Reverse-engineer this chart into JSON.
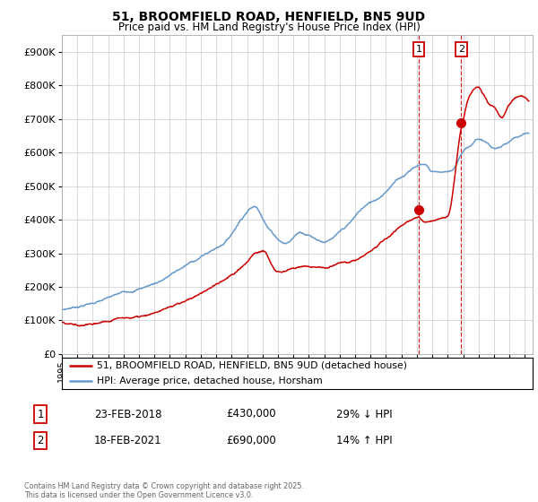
{
  "title1": "51, BROOMFIELD ROAD, HENFIELD, BN5 9UD",
  "title2": "Price paid vs. HM Land Registry's House Price Index (HPI)",
  "xlim_start": 1995.0,
  "xlim_end": 2025.5,
  "ylim": [
    0,
    950000
  ],
  "yticks": [
    0,
    100000,
    200000,
    300000,
    400000,
    500000,
    600000,
    700000,
    800000,
    900000
  ],
  "ytick_labels": [
    "£0",
    "£100K",
    "£200K",
    "£300K",
    "£400K",
    "£500K",
    "£600K",
    "£700K",
    "£800K",
    "£900K"
  ],
  "red_color": "#cc0000",
  "blue_color": "#6699cc",
  "transaction1_x": 2018.12,
  "transaction1_y": 430000,
  "transaction2_x": 2020.87,
  "transaction2_y": 690000,
  "legend_line1": "51, BROOMFIELD ROAD, HENFIELD, BN5 9UD (detached house)",
  "legend_line2": "HPI: Average price, detached house, Horsham",
  "table_row1": [
    "1",
    "23-FEB-2018",
    "£430,000",
    "29% ↓ HPI"
  ],
  "table_row2": [
    "2",
    "18-FEB-2021",
    "£690,000",
    "14% ↑ HPI"
  ],
  "footer": "Contains HM Land Registry data © Crown copyright and database right 2025.\nThis data is licensed under the Open Government Licence v3.0.",
  "background_color": "#ffffff",
  "grid_color": "#cccccc",
  "hpi_keypoints_x": [
    1995.0,
    1997.0,
    1998.5,
    2001.0,
    2002.5,
    2004.0,
    2005.5,
    2007.5,
    2008.5,
    2009.5,
    2010.5,
    2012.0,
    2013.5,
    2014.5,
    2015.5,
    2016.5,
    2017.2,
    2017.8,
    2018.5,
    2019.0,
    2019.7,
    2020.3,
    2021.0,
    2021.5,
    2022.0,
    2022.5,
    2023.0,
    2023.8,
    2024.5,
    2025.25
  ],
  "hpi_keypoints_y": [
    130000,
    155000,
    175000,
    215000,
    255000,
    295000,
    340000,
    455000,
    390000,
    355000,
    390000,
    370000,
    410000,
    460000,
    490000,
    540000,
    565000,
    590000,
    600000,
    580000,
    580000,
    590000,
    640000,
    660000,
    680000,
    670000,
    650000,
    660000,
    675000,
    680000
  ],
  "red_keypoints_x": [
    1995.0,
    1996.5,
    1998.0,
    1999.5,
    2001.0,
    2002.5,
    2004.0,
    2005.0,
    2006.5,
    2007.5,
    2008.0,
    2009.0,
    2010.0,
    2011.0,
    2012.0,
    2013.0,
    2014.0,
    2015.0,
    2016.0,
    2017.0,
    2018.0,
    2018.12,
    2018.5,
    2019.0,
    2019.5,
    2020.0,
    2020.87,
    2021.5,
    2022.0,
    2022.3,
    2022.7,
    2023.0,
    2023.5,
    2024.0,
    2024.5,
    2025.25
  ],
  "red_keypoints_y": [
    95000,
    90000,
    100000,
    110000,
    130000,
    155000,
    185000,
    215000,
    260000,
    310000,
    320000,
    255000,
    265000,
    275000,
    270000,
    285000,
    295000,
    320000,
    360000,
    400000,
    428000,
    430000,
    415000,
    415000,
    420000,
    430000,
    690000,
    800000,
    820000,
    800000,
    770000,
    760000,
    730000,
    770000,
    790000,
    775000
  ]
}
